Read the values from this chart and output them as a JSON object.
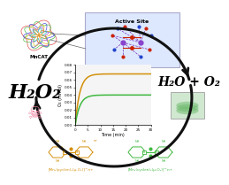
{
  "background_color": "#ffffff",
  "curve1_color": "#d4900a",
  "curve2_color": "#40b840",
  "h2o2_text": "H₂O₂",
  "product_text": "H₂O + O₂",
  "mncat_text": "MnCAT",
  "active_site_text": "Active Site",
  "complex1_label": "[Mn₂(pyclen)₂(μ-O₂)]^n+",
  "complex2_label": "[Mn₂(cyclen)₂(μ-O₂)]^n+",
  "xlabel": "Time (min)",
  "ylabel": "O₂ (mmol)",
  "time_max": 30,
  "o2_max": 0.08,
  "curve1_plateau": 0.068,
  "curve2_plateau": 0.04,
  "arrow_color": "#111111",
  "skull_color": "#f080a0",
  "cyclen_color": "#40b840",
  "pyclen_color": "#d4900a",
  "active_box_color": "#dde8ff",
  "active_box_edge": "#aaaacc",
  "protein_colors": [
    "#e05050",
    "#50c050",
    "#5050e0",
    "#e0c020",
    "#c050c0",
    "#20c0c0",
    "#e09020"
  ],
  "mn_color": "#8844cc",
  "o_color": "#cc2200",
  "n_color": "#2244cc"
}
